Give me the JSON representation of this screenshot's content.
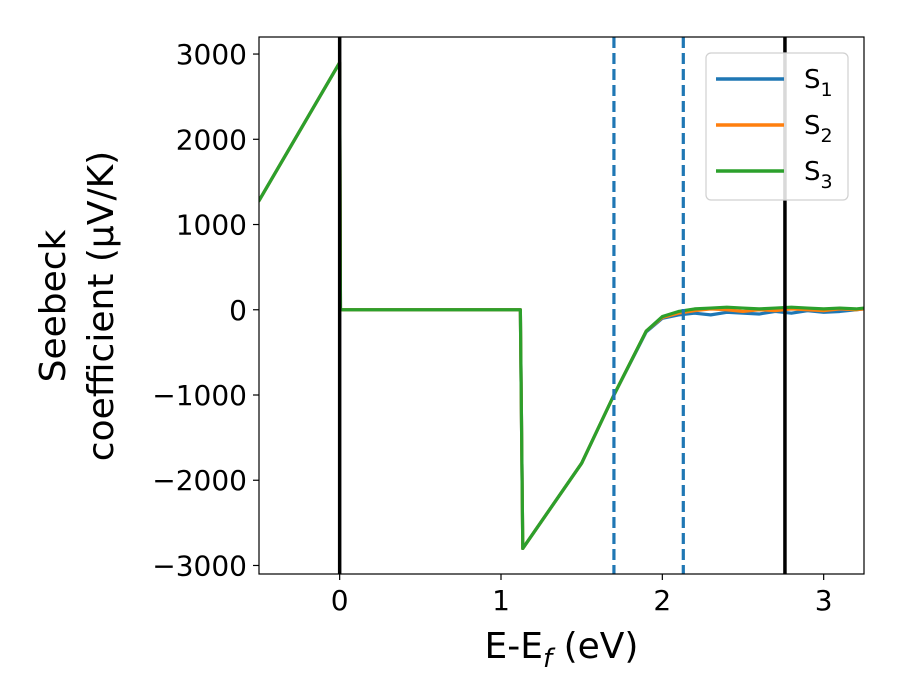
{
  "chart_data": {
    "type": "line",
    "xlabel_parts": [
      "E-E",
      "f",
      " (eV)"
    ],
    "ylabel_lines": [
      "Seebeck",
      "coefficient  (μV/K)"
    ],
    "xlim": [
      -0.5,
      3.25
    ],
    "ylim": [
      -3100,
      3200
    ],
    "xticks": [
      0,
      1,
      2,
      3
    ],
    "xtick_labels": [
      "0",
      "1",
      "2",
      "3"
    ],
    "yticks": [
      3000,
      2000,
      1000,
      0,
      -1000,
      -2000,
      -3000
    ],
    "ytick_labels": [
      "3000",
      "2000",
      "1000",
      "0",
      "−1000",
      "−2000",
      "−3000"
    ],
    "legend_position": "top-right",
    "series": [
      {
        "name": "S",
        "subscript": "1",
        "color": "#1f77b4",
        "points": [
          [
            -0.5,
            1280
          ],
          [
            0,
            2900
          ],
          [
            0.005,
            0
          ],
          [
            1.12,
            0
          ],
          [
            1.135,
            -2800
          ],
          [
            1.5,
            -1800
          ],
          [
            1.7,
            -1000
          ],
          [
            1.9,
            -260
          ],
          [
            2.0,
            -100
          ],
          [
            2.1,
            -60
          ],
          [
            2.2,
            -40
          ],
          [
            2.3,
            -60
          ],
          [
            2.4,
            -30
          ],
          [
            2.5,
            -40
          ],
          [
            2.6,
            -50
          ],
          [
            2.7,
            -20
          ],
          [
            2.8,
            -40
          ],
          [
            2.9,
            -10
          ],
          [
            3.0,
            -30
          ],
          [
            3.1,
            -20
          ],
          [
            3.2,
            0
          ],
          [
            3.25,
            10
          ]
        ]
      },
      {
        "name": "S",
        "subscript": "2",
        "color": "#ff7f0e",
        "points": [
          [
            -0.5,
            1280
          ],
          [
            0,
            2900
          ],
          [
            0.005,
            0
          ],
          [
            1.12,
            0
          ],
          [
            1.135,
            -2800
          ],
          [
            1.5,
            -1800
          ],
          [
            1.7,
            -1000
          ],
          [
            1.9,
            -250
          ],
          [
            2.0,
            -90
          ],
          [
            2.1,
            -40
          ],
          [
            2.2,
            -10
          ],
          [
            2.3,
            10
          ],
          [
            2.4,
            0
          ],
          [
            2.5,
            -20
          ],
          [
            2.6,
            0
          ],
          [
            2.7,
            -10
          ],
          [
            2.8,
            10
          ],
          [
            2.9,
            0
          ],
          [
            3.0,
            -10
          ],
          [
            3.1,
            10
          ],
          [
            3.2,
            0
          ],
          [
            3.25,
            10
          ]
        ]
      },
      {
        "name": "S",
        "subscript": "3",
        "color": "#2ca02c",
        "points": [
          [
            -0.5,
            1280
          ],
          [
            0,
            2900
          ],
          [
            0.005,
            0
          ],
          [
            1.12,
            0
          ],
          [
            1.135,
            -2800
          ],
          [
            1.5,
            -1800
          ],
          [
            1.7,
            -1000
          ],
          [
            1.9,
            -250
          ],
          [
            2.0,
            -80
          ],
          [
            2.1,
            -20
          ],
          [
            2.2,
            10
          ],
          [
            2.3,
            20
          ],
          [
            2.4,
            30
          ],
          [
            2.5,
            20
          ],
          [
            2.6,
            10
          ],
          [
            2.7,
            20
          ],
          [
            2.8,
            30
          ],
          [
            2.9,
            20
          ],
          [
            3.0,
            10
          ],
          [
            3.1,
            20
          ],
          [
            3.2,
            10
          ],
          [
            3.25,
            20
          ]
        ]
      }
    ],
    "vlines": [
      {
        "x": 0,
        "color": "#000000",
        "style": "solid"
      },
      {
        "x": 2.76,
        "color": "#000000",
        "style": "solid"
      },
      {
        "x": 1.7,
        "color": "#1f77b4",
        "style": "dashed"
      },
      {
        "x": 2.13,
        "color": "#1f77b4",
        "style": "dashed"
      }
    ]
  }
}
